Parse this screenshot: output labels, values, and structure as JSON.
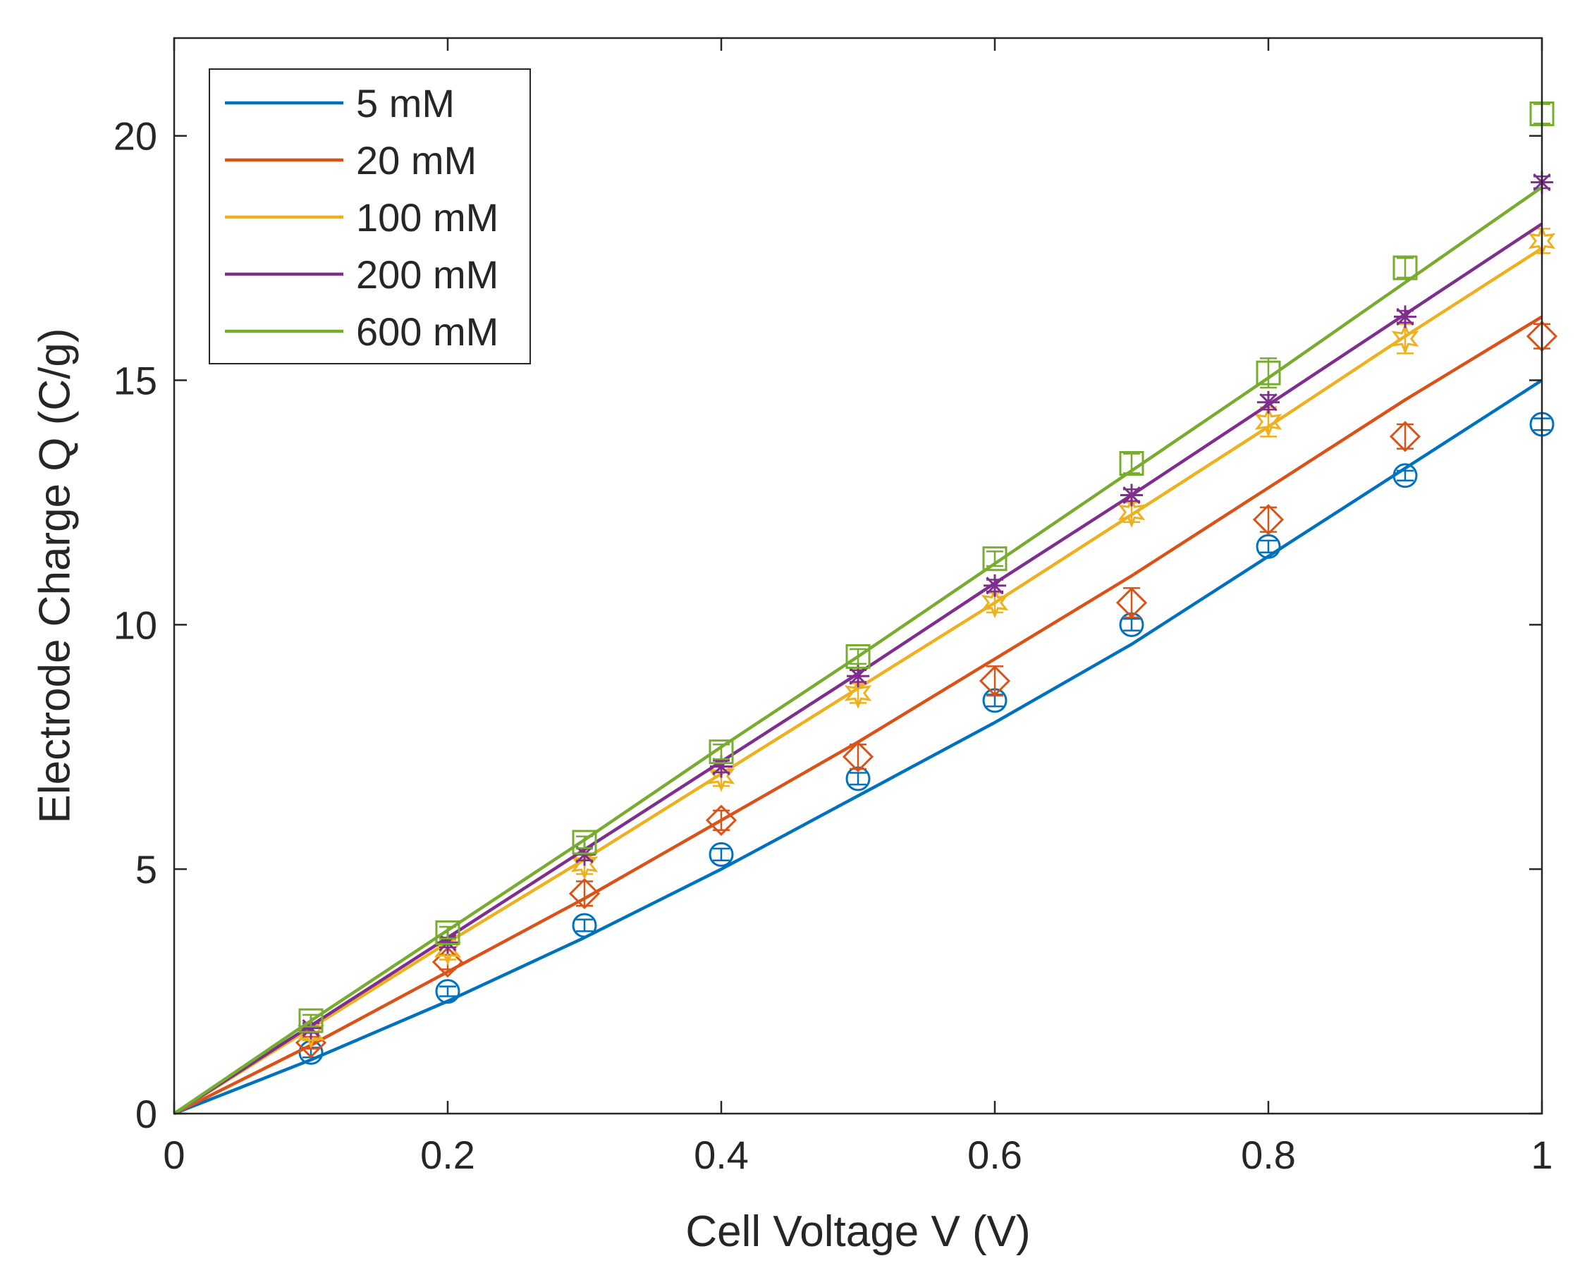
{
  "chart_data": {
    "type": "line",
    "xlabel": "Cell Voltage V (V)",
    "ylabel": "Electrode Charge Q (C/g)",
    "xlim": [
      0,
      1
    ],
    "ylim": [
      0,
      22
    ],
    "x_ticks": [
      "0",
      "0.2",
      "0.4",
      "0.6",
      "0.8",
      "1"
    ],
    "y_ticks": [
      "0",
      "5",
      "10",
      "15",
      "20"
    ],
    "grid": false,
    "legend_position": "top-left",
    "fit_x": [
      0,
      0.1,
      0.2,
      0.3,
      0.4,
      0.5,
      0.6,
      0.7,
      0.8,
      0.9,
      1.0
    ],
    "measured_x": [
      0.1,
      0.2,
      0.3,
      0.4,
      0.5,
      0.6,
      0.7,
      0.8,
      0.9,
      1.0
    ],
    "series": [
      {
        "name": "5 mM",
        "color": "#0072BD",
        "marker": "circle",
        "fit_y": [
          0,
          1.1,
          2.3,
          3.6,
          5.0,
          6.5,
          8.0,
          9.6,
          11.4,
          13.2,
          15.0
        ],
        "measured_y": [
          1.25,
          2.5,
          3.85,
          5.3,
          6.85,
          8.45,
          10.0,
          11.6,
          13.05,
          14.1
        ],
        "error": [
          0.1,
          0.1,
          0.12,
          0.12,
          0.12,
          0.12,
          0.12,
          0.12,
          0.1,
          0.12
        ]
      },
      {
        "name": "20 mM",
        "color": "#D95319",
        "marker": "diamond",
        "fit_y": [
          0,
          1.4,
          2.9,
          4.4,
          6.0,
          7.6,
          9.3,
          11.0,
          12.8,
          14.6,
          16.3
        ],
        "measured_y": [
          1.45,
          3.1,
          4.5,
          6.0,
          7.3,
          8.85,
          10.45,
          12.15,
          13.85,
          15.9
        ],
        "error": [
          0.12,
          0.15,
          0.25,
          0.2,
          0.25,
          0.3,
          0.3,
          0.25,
          0.25,
          0.25
        ]
      },
      {
        "name": "100 mM",
        "color": "#EDB120",
        "marker": "hexagram",
        "fit_y": [
          0,
          1.75,
          3.5,
          5.2,
          6.95,
          8.7,
          10.45,
          12.25,
          14.05,
          15.9,
          17.7
        ],
        "measured_y": [
          1.65,
          3.35,
          5.1,
          6.9,
          8.6,
          10.45,
          12.3,
          14.15,
          15.85,
          17.85
        ],
        "error": [
          0.15,
          0.2,
          0.2,
          0.2,
          0.2,
          0.2,
          0.2,
          0.3,
          0.3,
          0.25
        ]
      },
      {
        "name": "200 mM",
        "color": "#7E2F8E",
        "marker": "asterisk",
        "fit_y": [
          0,
          1.8,
          3.6,
          5.4,
          7.2,
          9.0,
          10.85,
          12.65,
          14.5,
          16.35,
          18.2
        ],
        "measured_y": [
          1.75,
          3.5,
          5.3,
          7.1,
          8.95,
          10.8,
          12.65,
          14.55,
          16.3,
          19.05
        ],
        "error": [
          0.1,
          0.1,
          0.12,
          0.12,
          0.12,
          0.12,
          0.12,
          0.15,
          0.12,
          0.12
        ]
      },
      {
        "name": "600 mM",
        "color": "#77AC30",
        "marker": "square",
        "fit_y": [
          0,
          1.9,
          3.75,
          5.6,
          7.5,
          9.35,
          11.25,
          13.15,
          15.05,
          17.0,
          18.95
        ],
        "measured_y": [
          1.9,
          3.7,
          5.55,
          7.4,
          9.35,
          11.35,
          13.3,
          15.15,
          17.3,
          20.45
        ],
        "error": [
          0.12,
          0.12,
          0.12,
          0.15,
          0.15,
          0.15,
          0.2,
          0.3,
          0.2,
          0.2
        ]
      }
    ]
  }
}
